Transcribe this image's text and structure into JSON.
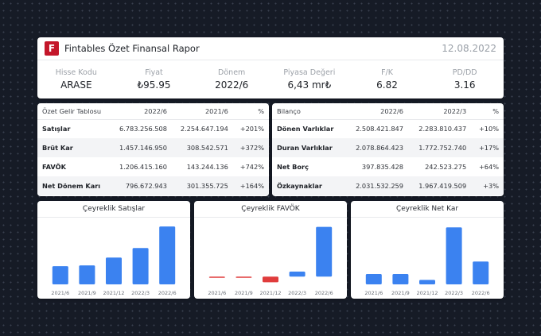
{
  "header": {
    "logo_letter": "F",
    "title": "Fintables Özet Finansal Rapor",
    "date": "12.08.2022"
  },
  "kpis": [
    {
      "label": "Hisse Kodu",
      "value": "ARASE"
    },
    {
      "label": "Fiyat",
      "value": "₺95.95"
    },
    {
      "label": "Dönem",
      "value": "2022/6"
    },
    {
      "label": "Piyasa Değeri",
      "value": "6,43 mr₺"
    },
    {
      "label": "F/K",
      "value": "6.82"
    },
    {
      "label": "PD/DD",
      "value": "3.16"
    }
  ],
  "income": {
    "headers": [
      "Özet Gelir Tablosu",
      "2022/6",
      "2021/6",
      "%"
    ],
    "rows": [
      {
        "name": "Satışlar",
        "cur": "6.783.256.508",
        "prev": "2.254.647.194",
        "pct": "+201%",
        "trend": "pos"
      },
      {
        "name": "Brüt Kar",
        "cur": "1.457.146.950",
        "prev": "308.542.571",
        "pct": "+372%",
        "trend": "pos"
      },
      {
        "name": "FAVÖK",
        "cur": "1.206.415.160",
        "prev": "143.244.136",
        "pct": "+742%",
        "trend": "pos"
      },
      {
        "name": "Net Dönem Karı",
        "cur": "796.672.943",
        "prev": "301.355.725",
        "pct": "+164%",
        "trend": "pos"
      }
    ]
  },
  "balance": {
    "headers": [
      "Bilanço",
      "2022/6",
      "2022/3",
      "%"
    ],
    "rows": [
      {
        "name": "Dönen Varlıklar",
        "cur": "2.508.421.847",
        "prev": "2.283.810.437",
        "pct": "+10%",
        "trend": "pos"
      },
      {
        "name": "Duran Varlıklar",
        "cur": "2.078.864.423",
        "prev": "1.772.752.740",
        "pct": "+17%",
        "trend": "pos"
      },
      {
        "name": "Net Borç",
        "cur": "397.835.428",
        "prev": "242.523.275",
        "pct": "+64%",
        "trend": "neg"
      },
      {
        "name": "Özkaynaklar",
        "cur": "2.031.532.259",
        "prev": "1.967.419.509",
        "pct": "+3%",
        "trend": "pos"
      }
    ]
  },
  "colors": {
    "positive_bar": "#3b82f0",
    "negative_bar": "#e03c3c",
    "positive_text": "#22a55a",
    "negative_text": "#e03c3c",
    "logo": "#c4162a"
  },
  "chart_data": [
    {
      "type": "bar",
      "title": "Çeyreklik Satışlar",
      "categories": [
        "2021/6",
        "2021/9",
        "2021/12",
        "2022/3",
        "2022/6"
      ],
      "values": [
        1.05,
        1.1,
        1.55,
        2.1,
        3.35
      ],
      "ylim": [
        0,
        3.4
      ],
      "grid": false
    },
    {
      "type": "bar",
      "title": "Çeyreklik FAVÖK",
      "categories": [
        "2021/6",
        "2021/9",
        "2021/12",
        "2022/3",
        "2022/6"
      ],
      "values": [
        -0.04,
        -0.03,
        -0.22,
        0.2,
        1.95
      ],
      "ylim": [
        -0.3,
        2.0
      ],
      "grid": false
    },
    {
      "type": "bar",
      "title": "Çeyreklik Net Kar",
      "categories": [
        "2021/6",
        "2021/9",
        "2021/12",
        "2022/3",
        "2022/6"
      ],
      "values": [
        0.28,
        0.28,
        0.12,
        1.55,
        0.62
      ],
      "ylim": [
        0,
        1.6
      ],
      "grid": false
    }
  ]
}
